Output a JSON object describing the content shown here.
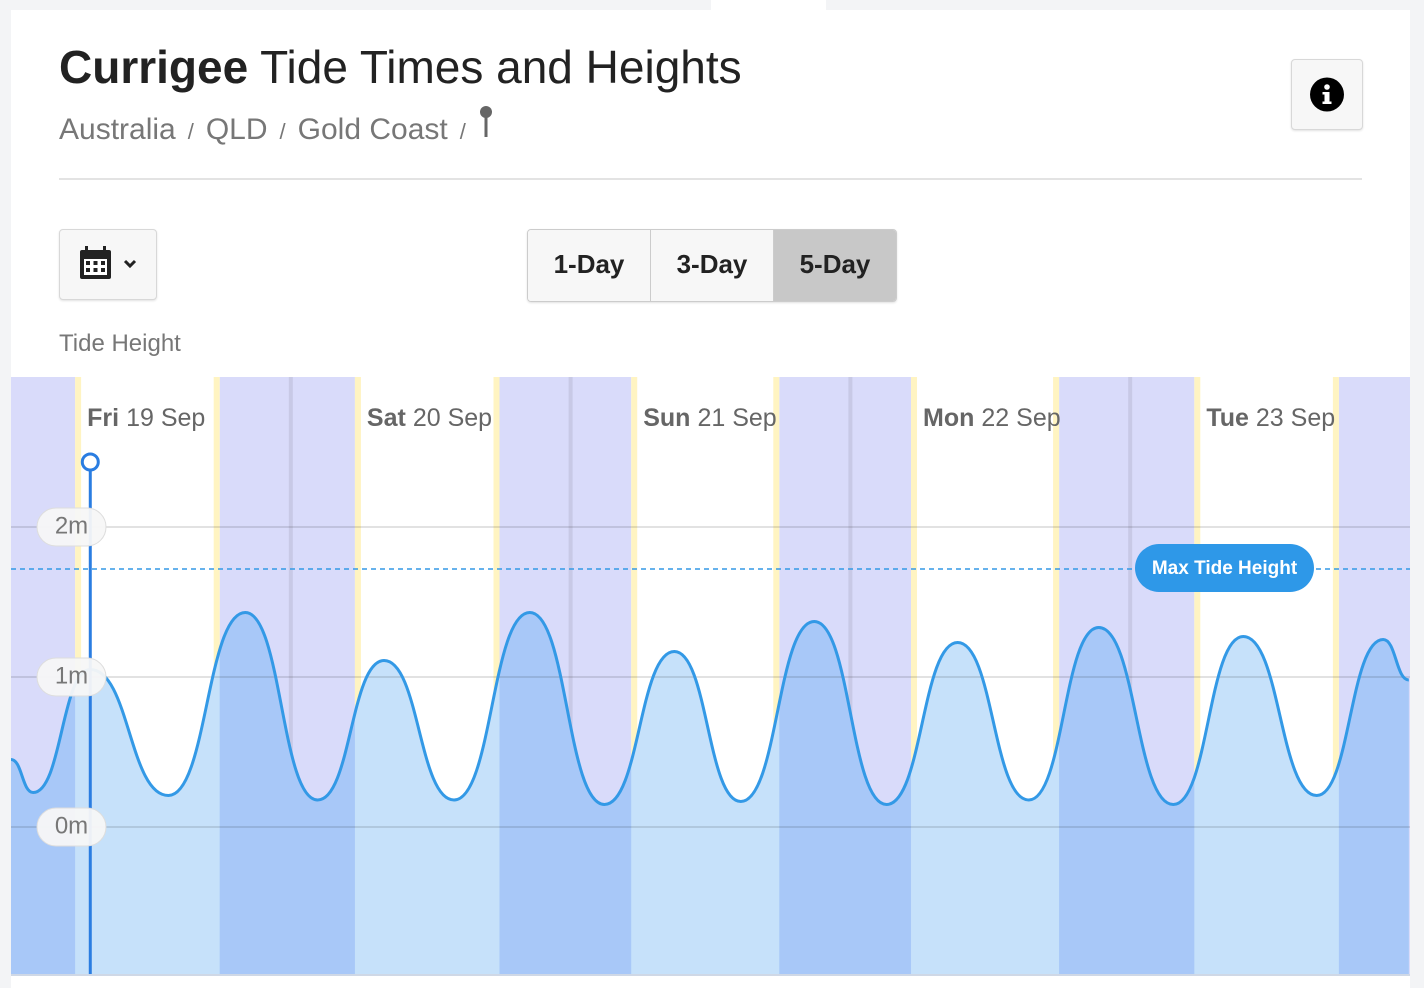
{
  "header": {
    "title_bold": "Currigee",
    "title_rest": "Tide Times and Heights",
    "breadcrumbs": [
      "Australia",
      "QLD",
      "Gold Coast"
    ],
    "breadcrumb_separator": "/"
  },
  "range_tabs": {
    "tabs": [
      "1-Day",
      "3-Day",
      "5-Day"
    ],
    "active": 2
  },
  "chart_data": {
    "type": "line",
    "y_label": "Tide Height",
    "xlim": [
      0,
      120
    ],
    "ylim": [
      -1,
      3
    ],
    "yticks": [
      {
        "value": 2,
        "label": "2m"
      },
      {
        "value": 1,
        "label": "1m"
      },
      {
        "value": 0,
        "label": "0m"
      }
    ],
    "grid": true,
    "days": [
      {
        "weekday": "Fri",
        "date": "19 Sep",
        "sunrise": 5.5,
        "sunset": 17.9
      },
      {
        "weekday": "Sat",
        "date": "20 Sep",
        "sunrise": 29.5,
        "sunset": 41.9
      },
      {
        "weekday": "Sun",
        "date": "21 Sep",
        "sunrise": 53.2,
        "sunset": 65.9
      },
      {
        "weekday": "Mon",
        "date": "22 Sep",
        "sunrise": 77.2,
        "sunset": 89.9
      },
      {
        "weekday": "Tue",
        "date": "23 Sep",
        "sunrise": 101.5,
        "sunset": 113.9
      }
    ],
    "x": [
      0,
      1.9,
      6.8,
      13.5,
      20.1,
      26.3,
      32.0,
      38.0,
      44.5,
      50.9,
      56.9,
      62.6,
      68.9,
      75.1,
      81.2,
      87.3,
      93.3,
      99.7,
      105.7,
      112.0,
      117.7,
      119.9
    ],
    "series": [
      {
        "name": "Tide Height",
        "color": "#3399e6",
        "values": [
          0.45,
          0.23,
          1.05,
          0.21,
          1.43,
          0.18,
          1.11,
          0.18,
          1.43,
          0.15,
          1.17,
          0.17,
          1.37,
          0.15,
          1.23,
          0.18,
          1.33,
          0.15,
          1.27,
          0.21,
          1.25,
          0.98
        ]
      }
    ],
    "max_tide": {
      "label": "Max Tide Height",
      "value": 1.72
    },
    "now": 6.8
  }
}
